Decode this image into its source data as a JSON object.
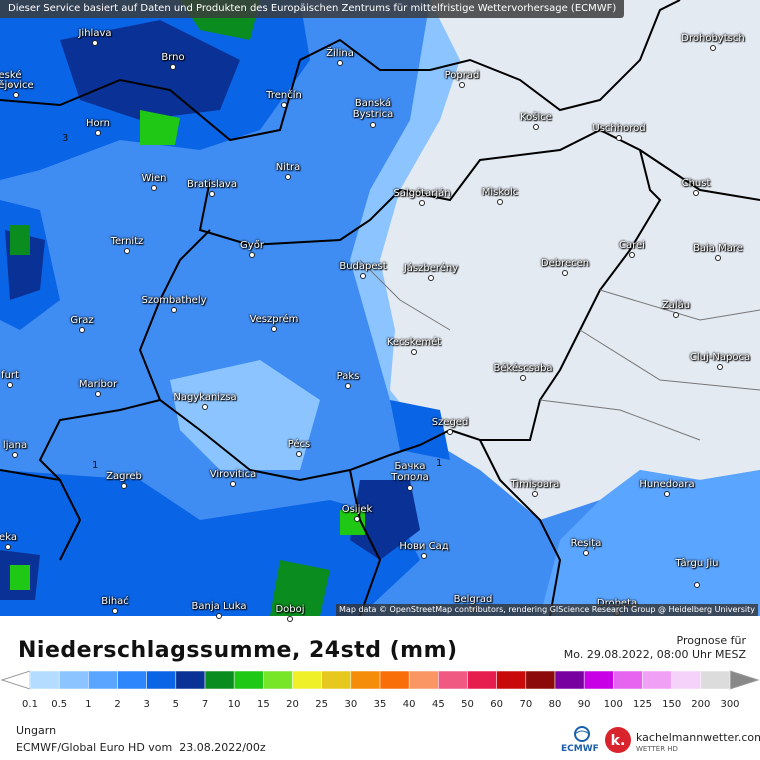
{
  "header": {
    "notice": "Dieser Service basiert auf Daten und Produkten des Europäischen Zentrums für mittelfristige Wettervorhersage (ECMWF)"
  },
  "map": {
    "cities": [
      "Jihlava",
      "Brno",
      "Žilina",
      "Drohobytsch",
      "eské",
      "ějovice",
      "Poprad",
      "Trenčín",
      "Banská Bystrica",
      "Košice",
      "Uschhorod",
      "Horn",
      "Wien",
      "Bratislava",
      "Nitra",
      "Salgótarján",
      "Miskolc",
      "Chust",
      "Ternitz",
      "Győr",
      "Budapest",
      "Jászberény",
      "Debrecen",
      "Carei",
      "Baia Mare",
      "Szombathely",
      "Zalău",
      "Graz",
      "Veszprém",
      "Kecskemét",
      "Cluj-Napoca",
      "Békéscsaba",
      "furt",
      "Paks",
      "Maribor",
      "Nagykanizsa",
      "Szeged",
      "ljana",
      "Pécs",
      "Бачка Топола",
      "Zagreb",
      "Virovitica",
      "Timișoara",
      "Hunedoara",
      "Osijek",
      "eka",
      "Нови Сад",
      "Reșița",
      "Târgu Jiu",
      "Bihać",
      "Banja Luka",
      "Doboj",
      "Belgrad",
      "Drobeta"
    ],
    "contour_labels": [
      "3",
      "1",
      "1"
    ],
    "attribution": "Map data © OpenStreetMap contributors, rendering GIScience Research Group @ Heidelberg University"
  },
  "legend": {
    "title": "Niederschlagssumme, 24std (mm)",
    "levels": [
      0.1,
      0.5,
      1,
      2,
      3,
      5,
      7,
      10,
      15,
      20,
      25,
      30,
      35,
      40,
      45,
      50,
      60,
      70,
      80,
      90,
      100,
      125,
      150,
      200,
      300
    ],
    "colors": [
      "#b4dcff",
      "#8cc4ff",
      "#5aa5ff",
      "#2d87fa",
      "#0a64e6",
      "#0a3296",
      "#0a8c1e",
      "#1ec814",
      "#78e628",
      "#f0f028",
      "#e6c81e",
      "#f58c0a",
      "#fa6e0a",
      "#fa9664",
      "#f05a82",
      "#e61e50",
      "#c80a0a",
      "#8c0a0a",
      "#7800a0",
      "#c800e6",
      "#e664f0",
      "#f0a0f5",
      "#f5d2fa",
      "#dcdcdc"
    ]
  },
  "forecast": {
    "label": "Prognose für",
    "valid": "Mo. 29.08.2022, 08:00 Uhr MESZ"
  },
  "footer": {
    "region": "Ungarn",
    "model": "ECMWF/Global Euro HD vom  23.08.2022/00z",
    "ecmwf": "ECMWF",
    "brand": "kachelmannwetter.com",
    "brand_sub": "WETTER HD"
  }
}
